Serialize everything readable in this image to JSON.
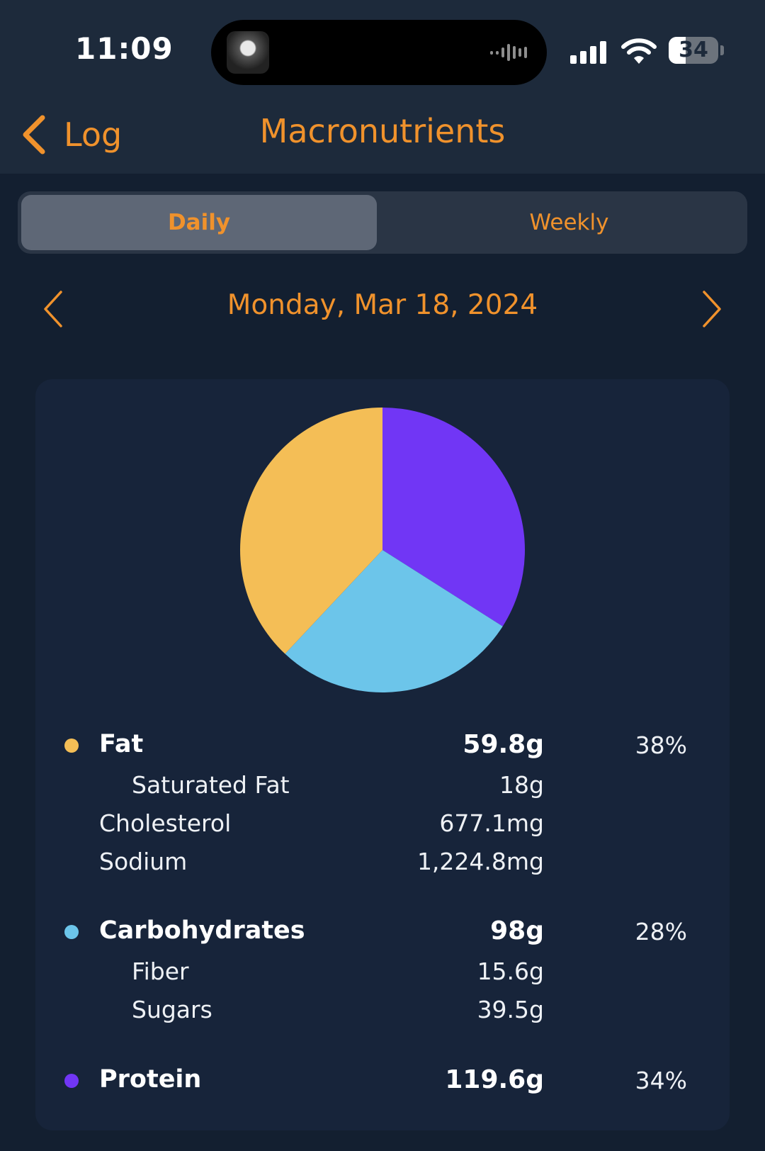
{
  "status_bar": {
    "time": "11:09",
    "battery": "34",
    "battery_level": 0.34
  },
  "nav": {
    "back_label": "Log",
    "title": "Macronutrients"
  },
  "segments": {
    "daily": "Daily",
    "weekly": "Weekly",
    "selected": "Daily"
  },
  "date": "Monday, Mar 18, 2024",
  "colors": {
    "accent": "#f0922c",
    "fat": "#f4be56",
    "carbohydrates": "#6cc5ea",
    "protein": "#7136f5"
  },
  "chart_data": {
    "type": "pie",
    "slices": [
      {
        "label": "Protein",
        "value": 34,
        "color": "#7136f5"
      },
      {
        "label": "Carbohydrates",
        "value": 28,
        "color": "#6cc5ea"
      },
      {
        "label": "Fat",
        "value": 38,
        "color": "#f4be56"
      }
    ]
  },
  "nutrients": {
    "fat": {
      "label": "Fat",
      "amount": "59.8g",
      "percent": "38%"
    },
    "saturated_fat": {
      "label": "Saturated Fat",
      "amount": "18g"
    },
    "cholesterol": {
      "label": "Cholesterol",
      "amount": "677.1mg"
    },
    "sodium": {
      "label": "Sodium",
      "amount": "1,224.8mg"
    },
    "carbohydrates": {
      "label": "Carbohydrates",
      "amount": "98g",
      "percent": "28%"
    },
    "fiber": {
      "label": "Fiber",
      "amount": "15.6g"
    },
    "sugars": {
      "label": "Sugars",
      "amount": "39.5g"
    },
    "protein": {
      "label": "Protein",
      "amount": "119.6g",
      "percent": "34%"
    }
  }
}
